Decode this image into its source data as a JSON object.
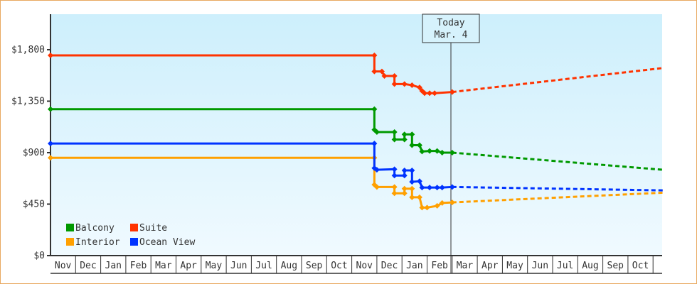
{
  "chart_data": {
    "type": "line",
    "title": "",
    "xlabel": "",
    "ylabel": "",
    "ylim": [
      0,
      2100
    ],
    "yticks": [
      "$0",
      "$450",
      "$900",
      "$1,350",
      "$1,800"
    ],
    "ytick_values": [
      0,
      450,
      900,
      1350,
      1800
    ],
    "x_months": [
      "Nov",
      "Dec",
      "Jan",
      "Feb",
      "Mar",
      "Apr",
      "May",
      "Jun",
      "Jul",
      "Aug",
      "Sep",
      "Oct",
      "Nov",
      "Dec",
      "Jan",
      "Feb",
      "Mar",
      "Apr",
      "May",
      "Jun",
      "Jul",
      "Aug",
      "Sep",
      "Oct"
    ],
    "grid": false,
    "legend_position": "lower-left",
    "annotation": {
      "line1": "Today",
      "line2": "Mar. 4"
    },
    "series": [
      {
        "name": "Balcony",
        "color": "#009900",
        "history": [
          [
            0,
            1280
          ],
          [
            12.9,
            1280
          ],
          [
            12.9,
            1100
          ],
          [
            13.0,
            1080
          ],
          [
            13.7,
            1080
          ],
          [
            13.7,
            1015
          ],
          [
            14.1,
            1015
          ],
          [
            14.1,
            1060
          ],
          [
            14.4,
            1060
          ],
          [
            14.4,
            965
          ],
          [
            14.7,
            965
          ],
          [
            14.8,
            910
          ],
          [
            15.1,
            915
          ],
          [
            15.4,
            915
          ],
          [
            15.6,
            900
          ],
          [
            16.0,
            900
          ]
        ],
        "projection": [
          [
            16.0,
            900
          ],
          [
            24.4,
            750
          ]
        ]
      },
      {
        "name": "Suite",
        "color": "#ff3300",
        "history": [
          [
            0,
            1750
          ],
          [
            12.9,
            1750
          ],
          [
            12.9,
            1610
          ],
          [
            13.2,
            1610
          ],
          [
            13.3,
            1570
          ],
          [
            13.7,
            1570
          ],
          [
            13.7,
            1500
          ],
          [
            14.1,
            1500
          ],
          [
            14.4,
            1490
          ],
          [
            14.7,
            1470
          ],
          [
            14.8,
            1440
          ],
          [
            14.9,
            1420
          ],
          [
            15.1,
            1420
          ],
          [
            15.3,
            1420
          ],
          [
            16.0,
            1430
          ]
        ],
        "projection": [
          [
            16.0,
            1430
          ],
          [
            24.4,
            1640
          ]
        ]
      },
      {
        "name": "Interior",
        "color": "#ffa000",
        "history": [
          [
            0,
            855
          ],
          [
            12.9,
            855
          ],
          [
            12.9,
            620
          ],
          [
            13.0,
            600
          ],
          [
            13.7,
            600
          ],
          [
            13.7,
            545
          ],
          [
            14.1,
            545
          ],
          [
            14.1,
            585
          ],
          [
            14.4,
            585
          ],
          [
            14.4,
            510
          ],
          [
            14.7,
            510
          ],
          [
            14.8,
            420
          ],
          [
            15.0,
            420
          ],
          [
            15.4,
            435
          ],
          [
            15.6,
            460
          ],
          [
            16.0,
            465
          ]
        ],
        "projection": [
          [
            16.0,
            465
          ],
          [
            24.4,
            550
          ]
        ]
      },
      {
        "name": "Ocean View",
        "color": "#0033ff",
        "history": [
          [
            0,
            980
          ],
          [
            12.9,
            980
          ],
          [
            12.9,
            765
          ],
          [
            13.0,
            750
          ],
          [
            13.7,
            755
          ],
          [
            13.7,
            700
          ],
          [
            14.1,
            700
          ],
          [
            14.1,
            745
          ],
          [
            14.4,
            745
          ],
          [
            14.4,
            645
          ],
          [
            14.7,
            650
          ],
          [
            14.8,
            595
          ],
          [
            15.1,
            595
          ],
          [
            15.4,
            595
          ],
          [
            15.6,
            595
          ],
          [
            16.0,
            600
          ]
        ],
        "projection": [
          [
            16.0,
            600
          ],
          [
            24.4,
            570
          ]
        ]
      }
    ]
  },
  "legend": {
    "items": [
      {
        "label": "Balcony",
        "color": "#009900"
      },
      {
        "label": "Suite",
        "color": "#ff3300"
      },
      {
        "label": "Interior",
        "color": "#ffa000"
      },
      {
        "label": "Ocean View",
        "color": "#0033ff"
      }
    ]
  }
}
